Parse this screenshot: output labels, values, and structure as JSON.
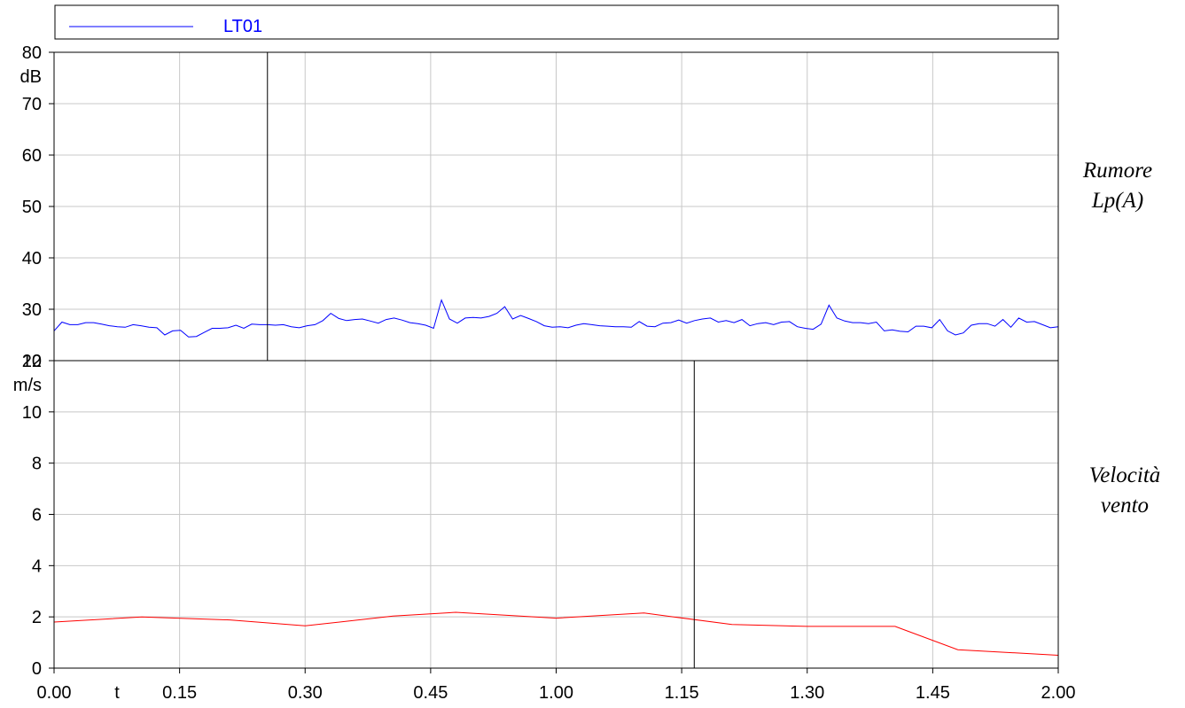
{
  "legend": {
    "label": "LT01",
    "color": "#0000ff"
  },
  "x_axis": {
    "ticks": [
      "0.00",
      "0.15",
      "0.30",
      "0.45",
      "1.00",
      "1.15",
      "1.30",
      "1.45",
      "2.00"
    ],
    "label": "t"
  },
  "chart_data": [
    {
      "type": "line",
      "title": "",
      "ylabel": "dB",
      "ylim": [
        20,
        80
      ],
      "yticks": [
        "80",
        "70",
        "60",
        "50",
        "40",
        "30",
        "20"
      ],
      "grid": true,
      "side_label_lines": [
        "Rumore",
        "Lp(A)"
      ],
      "cursor_x": 1.7,
      "series": [
        {
          "name": "LT01",
          "color": "#0000ff",
          "x_start": 0,
          "x_end": 8,
          "values": [
            25.8,
            27.5,
            27.0,
            27.0,
            27.4,
            27.4,
            27.1,
            26.8,
            26.6,
            26.5,
            27.0,
            26.8,
            26.5,
            26.4,
            25.0,
            25.8,
            25.9,
            24.6,
            24.7,
            25.5,
            26.3,
            26.3,
            26.4,
            26.9,
            26.3,
            27.1,
            27.0,
            27.0,
            26.9,
            27.0,
            26.6,
            26.4,
            26.8,
            27.0,
            27.8,
            29.2,
            28.2,
            27.8,
            28.0,
            28.1,
            27.7,
            27.3,
            28.0,
            28.3,
            27.9,
            27.4,
            27.2,
            26.9,
            26.3,
            31.8,
            28.1,
            27.3,
            28.3,
            28.4,
            28.3,
            28.6,
            29.2,
            30.5,
            28.1,
            28.8,
            28.2,
            27.6,
            26.8,
            26.5,
            26.6,
            26.4,
            26.9,
            27.2,
            27.0,
            26.8,
            26.7,
            26.6,
            26.6,
            26.5,
            27.6,
            26.7,
            26.6,
            27.3,
            27.4,
            27.9,
            27.3,
            27.8,
            28.1,
            28.3,
            27.5,
            27.8,
            27.4,
            28.0,
            26.8,
            27.2,
            27.4,
            27.0,
            27.5,
            27.6,
            26.6,
            26.3,
            26.1,
            27.1,
            30.8,
            28.3,
            27.7,
            27.4,
            27.4,
            27.2,
            27.5,
            25.8,
            26.0,
            25.7,
            25.6,
            26.7,
            26.7,
            26.4,
            28.0,
            25.8,
            25.0,
            25.4,
            26.9,
            27.2,
            27.2,
            26.7,
            28.0,
            26.5,
            28.3,
            27.5,
            27.6,
            27.0,
            26.4,
            26.6
          ]
        }
      ]
    },
    {
      "type": "line",
      "title": "",
      "ylabel": "m/s",
      "ylim": [
        0,
        12
      ],
      "yticks": [
        "12",
        "10",
        "8",
        "6",
        "4",
        "2",
        "0"
      ],
      "grid": true,
      "side_label_lines": [
        "Velocità",
        "vento"
      ],
      "cursor_x": 5.1,
      "series": [
        {
          "name": "",
          "color": "#ff0000",
          "x": [
            0,
            0.7,
            1.4,
            2.0,
            2.7,
            3.2,
            4.0,
            4.7,
            5.4,
            6.0,
            6.7,
            7.2,
            8.0
          ],
          "values": [
            1.8,
            2.0,
            1.88,
            1.65,
            2.03,
            2.18,
            1.95,
            2.15,
            1.7,
            1.63,
            1.63,
            0.72,
            0.5
          ]
        }
      ]
    }
  ]
}
